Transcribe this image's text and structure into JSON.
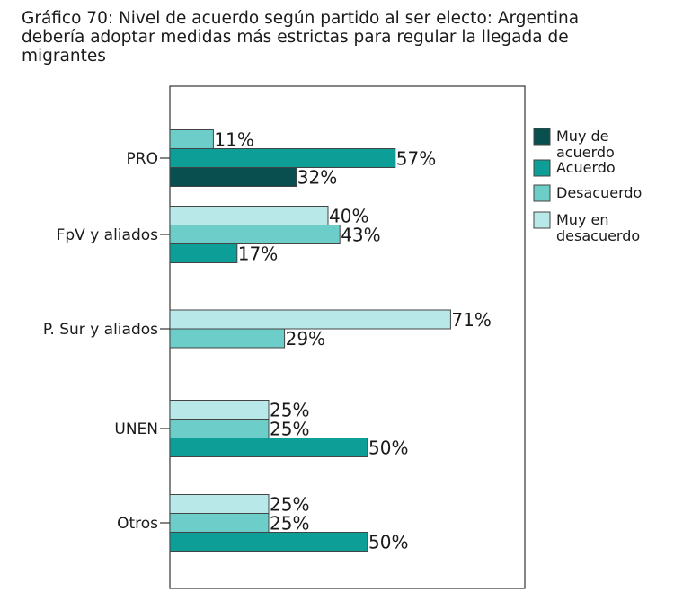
{
  "title": "Gráfico 70: Nivel de acuerdo según partido al ser electo: Argentina\ndebería adoptar medidas más estrictas para regular la llegada de\nmigrantes",
  "chart_data": {
    "type": "bar",
    "orientation": "horizontal",
    "xlim": [
      0,
      100
    ],
    "grid": false,
    "legend_position": "right",
    "categories": [
      "PRO",
      "FpV y aliados",
      "P. Sur y aliados",
      "UNEN",
      "Otros"
    ],
    "series": [
      {
        "name": "Muy de\nacuerdo",
        "color": "#0a4f4f",
        "values": [
          32,
          null,
          null,
          null,
          null
        ]
      },
      {
        "name": "Acuerdo",
        "color": "#0e9e98",
        "values": [
          57,
          17,
          null,
          50,
          50
        ]
      },
      {
        "name": "Desacuerdo",
        "color": "#6ccdc9",
        "values": [
          11,
          43,
          29,
          25,
          25
        ]
      },
      {
        "name": "Muy en\ndesacuerdo",
        "color": "#b9e8e8",
        "values": [
          null,
          40,
          71,
          25,
          25
        ]
      }
    ],
    "bar_labels": [
      [
        {
          "series": 2,
          "text": "11%"
        },
        {
          "series": 1,
          "text": "57%"
        },
        {
          "series": 0,
          "text": "32%"
        }
      ],
      [
        {
          "series": 3,
          "text": "40%"
        },
        {
          "series": 2,
          "text": "43%"
        },
        {
          "series": 1,
          "text": "17%"
        }
      ],
      [
        {
          "series": 3,
          "text": "71%"
        },
        {
          "series": 2,
          "text": "29%"
        }
      ],
      [
        {
          "series": 3,
          "text": "25%"
        },
        {
          "series": 2,
          "text": "25%"
        },
        {
          "series": 1,
          "text": "50%"
        }
      ],
      [
        {
          "series": 3,
          "text": "25%"
        },
        {
          "series": 2,
          "text": "25%"
        },
        {
          "series": 1,
          "text": "50%"
        }
      ]
    ]
  }
}
